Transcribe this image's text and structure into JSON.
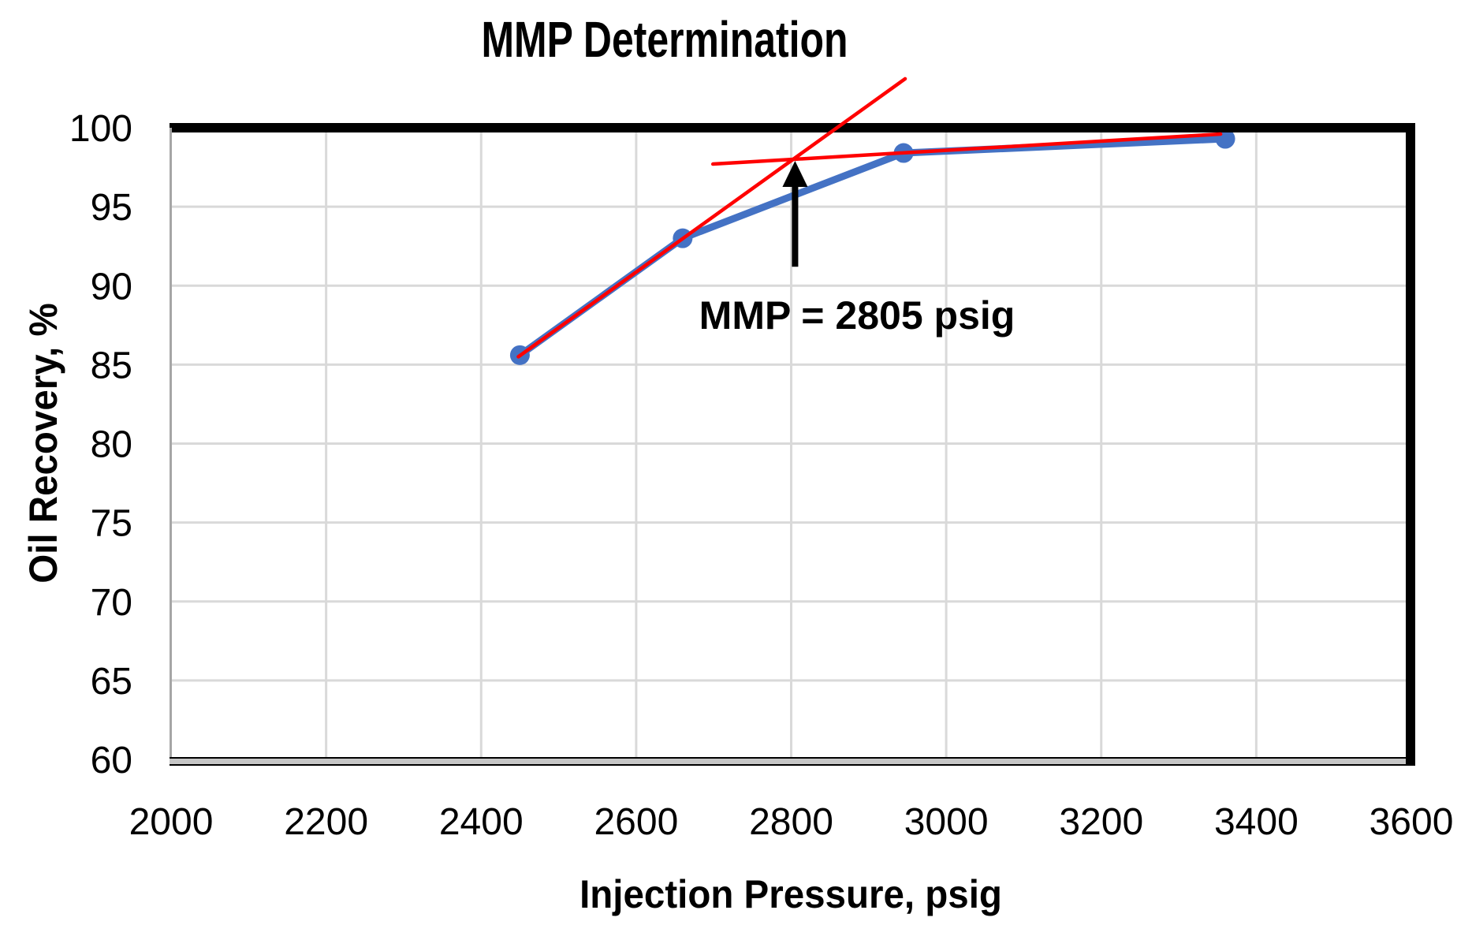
{
  "page": {
    "background": "#FFFFFF"
  },
  "chart_data": {
    "type": "line",
    "title": "MMP Determination",
    "xlabel": "Injection Pressure, psig",
    "ylabel": "Oil Recovery, %",
    "xlim": [
      2000,
      3600
    ],
    "ylim": [
      60,
      100
    ],
    "x_ticks": [
      2000,
      2200,
      2400,
      2600,
      2800,
      3000,
      3200,
      3400,
      3600
    ],
    "y_ticks": [
      60,
      65,
      70,
      75,
      80,
      85,
      90,
      95,
      100
    ],
    "grid": true,
    "legend": "none",
    "series": [
      {
        "name": "Oil Recovery",
        "color": "#4472C4",
        "marker": "circle",
        "x": [
          2450,
          2660,
          2945,
          3360
        ],
        "y": [
          85.6,
          93.0,
          98.4,
          99.3
        ]
      }
    ],
    "trend_lines": [
      {
        "name": "low-pressure-extrapolation",
        "color": "#FF0000",
        "points": [
          [
            2448,
            85.5
          ],
          [
            2947,
            103.1
          ]
        ]
      },
      {
        "name": "high-pressure-extrapolation",
        "color": "#FF0000",
        "points": [
          [
            2699,
            97.7
          ],
          [
            3354,
            99.6
          ]
        ]
      }
    ],
    "annotations": [
      {
        "name": "mmp-label",
        "text": "MMP = 2805 psig",
        "x": 2885,
        "y": 88.1
      },
      {
        "name": "mmp-arrow",
        "type": "arrow",
        "x": 2805,
        "y_tail": 91.2,
        "y_tip": 97.9
      }
    ]
  },
  "colors": {
    "series_blue": "#4472C4",
    "trend_red": "#FF0000",
    "gridline": "#D9D9D9",
    "axis_border": "#000000",
    "bottom_axis_band": "#C6C6C6",
    "bottom_axis_edge": "#000000",
    "left_axis_line": "#A6A6A6",
    "text": "#000000"
  }
}
